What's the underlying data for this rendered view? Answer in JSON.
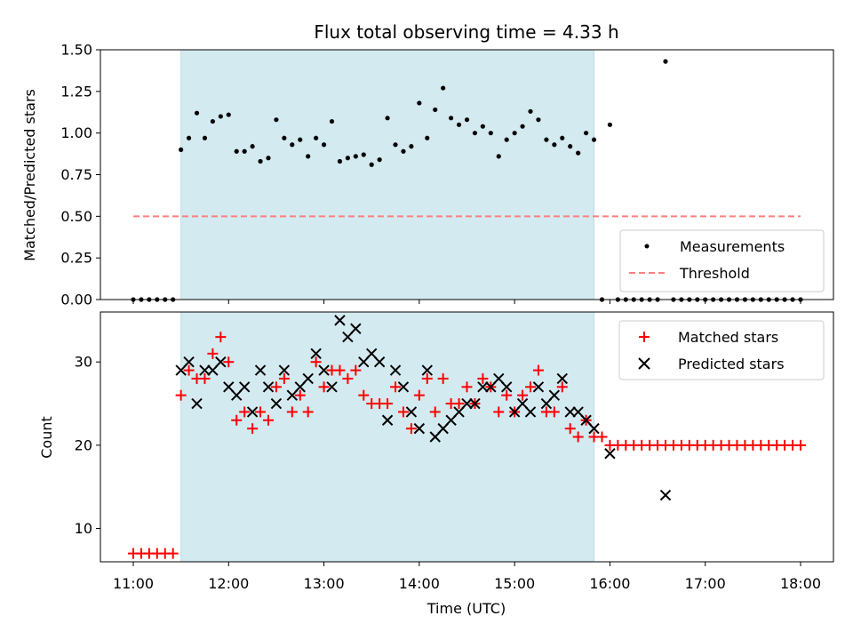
{
  "chart_data": {
    "title": "Flux total observing time = 4.33 h",
    "xlabel": "Time (UTC)",
    "x_ticks": [
      "11:00",
      "12:00",
      "13:00",
      "14:00",
      "15:00",
      "16:00",
      "17:00",
      "18:00"
    ],
    "highlight_span": {
      "start": "11:30",
      "end": "15:50",
      "color": "#d3eaf0"
    },
    "panels": [
      {
        "type": "scatter",
        "ylabel": "Matched/Predicted stars",
        "ylim": [
          0,
          1.5
        ],
        "y_ticks": [
          "0.00",
          "0.25",
          "0.50",
          "0.75",
          "1.00",
          "1.25",
          "1.50"
        ],
        "legend_position": "lower-right",
        "threshold": {
          "name": "Threshold",
          "value": 0.5,
          "x_start": "11:00",
          "x_end": "18:00",
          "color": "#ff7f7f"
        },
        "series": [
          {
            "name": "Measurements",
            "marker": "dot",
            "color": "#000000",
            "x": [
              "11:00",
              "11:05",
              "11:10",
              "11:15",
              "11:20",
              "11:25",
              "11:30",
              "11:35",
              "11:40",
              "11:45",
              "11:50",
              "11:55",
              "12:00",
              "12:05",
              "12:10",
              "12:15",
              "12:20",
              "12:25",
              "12:30",
              "12:35",
              "12:40",
              "12:45",
              "12:50",
              "12:55",
              "13:00",
              "13:05",
              "13:10",
              "13:15",
              "13:20",
              "13:25",
              "13:30",
              "13:35",
              "13:40",
              "13:45",
              "13:50",
              "13:55",
              "14:00",
              "14:05",
              "14:10",
              "14:15",
              "14:20",
              "14:25",
              "14:30",
              "14:35",
              "14:40",
              "14:45",
              "14:50",
              "14:55",
              "15:00",
              "15:05",
              "15:10",
              "15:15",
              "15:20",
              "15:25",
              "15:30",
              "15:35",
              "15:40",
              "15:45",
              "15:50",
              "15:55",
              "16:00",
              "16:05",
              "16:10",
              "16:15",
              "16:20",
              "16:25",
              "16:30",
              "16:35",
              "16:40",
              "16:45",
              "16:50",
              "16:55",
              "17:00",
              "17:05",
              "17:10",
              "17:15",
              "17:20",
              "17:25",
              "17:30",
              "17:35",
              "17:40",
              "17:45",
              "17:50",
              "17:55",
              "18:00"
            ],
            "y": [
              0,
              0,
              0,
              0,
              0,
              0,
              0.9,
              0.97,
              1.12,
              0.97,
              1.07,
              1.1,
              1.11,
              0.89,
              0.89,
              0.92,
              0.83,
              0.85,
              1.08,
              0.97,
              0.93,
              0.96,
              0.86,
              0.97,
              0.93,
              1.07,
              0.83,
              0.85,
              0.86,
              0.87,
              0.81,
              0.84,
              1.09,
              0.93,
              0.89,
              0.92,
              1.18,
              0.97,
              1.14,
              1.27,
              1.09,
              1.05,
              1.08,
              1.0,
              1.04,
              1.0,
              0.86,
              0.96,
              1.0,
              1.04,
              1.13,
              1.08,
              0.96,
              0.93,
              0.97,
              0.92,
              0.88,
              1.0,
              0.96,
              0,
              1.05,
              0,
              0,
              0,
              0,
              0,
              0,
              1.43,
              0,
              0,
              0,
              0,
              0,
              0,
              0,
              0,
              0,
              0,
              0,
              0,
              0,
              0,
              0,
              0,
              0
            ]
          }
        ]
      },
      {
        "type": "scatter",
        "ylabel": "Count",
        "ylim": [
          6,
          36
        ],
        "y_ticks": [
          "10",
          "20",
          "30"
        ],
        "legend_position": "upper-right",
        "series": [
          {
            "name": "Matched stars",
            "marker": "plus",
            "color": "#ff0000",
            "x": [
              "11:00",
              "11:05",
              "11:10",
              "11:15",
              "11:20",
              "11:25",
              "11:30",
              "11:35",
              "11:40",
              "11:45",
              "11:50",
              "11:55",
              "12:00",
              "12:05",
              "12:10",
              "12:15",
              "12:20",
              "12:25",
              "12:30",
              "12:35",
              "12:40",
              "12:45",
              "12:50",
              "12:55",
              "13:00",
              "13:05",
              "13:10",
              "13:15",
              "13:20",
              "13:25",
              "13:30",
              "13:35",
              "13:40",
              "13:45",
              "13:50",
              "13:55",
              "14:00",
              "14:05",
              "14:10",
              "14:15",
              "14:20",
              "14:25",
              "14:30",
              "14:35",
              "14:40",
              "14:45",
              "14:50",
              "14:55",
              "15:00",
              "15:05",
              "15:10",
              "15:15",
              "15:20",
              "15:25",
              "15:30",
              "15:35",
              "15:40",
              "15:45",
              "15:50",
              "15:55",
              "16:00",
              "16:05",
              "16:10",
              "16:15",
              "16:20",
              "16:25",
              "16:30",
              "16:35",
              "16:40",
              "16:45",
              "16:50",
              "16:55",
              "17:00",
              "17:05",
              "17:10",
              "17:15",
              "17:20",
              "17:25",
              "17:30",
              "17:35",
              "17:40",
              "17:45",
              "17:50",
              "17:55",
              "18:00"
            ],
            "y": [
              7,
              7,
              7,
              7,
              7,
              7,
              26,
              29,
              28,
              28,
              31,
              33,
              30,
              23,
              24,
              22,
              24,
              23,
              27,
              28,
              24,
              26,
              24,
              30,
              27,
              29,
              29,
              28,
              29,
              26,
              25,
              25,
              25,
              27,
              24,
              22,
              26,
              28,
              24,
              28,
              25,
              25,
              27,
              25,
              28,
              27,
              24,
              26,
              24,
              26,
              27,
              29,
              24,
              24,
              27,
              22,
              21,
              23,
              21,
              21,
              20,
              20,
              20,
              20,
              20,
              20,
              20,
              20,
              20,
              20,
              20,
              20,
              20,
              20,
              20,
              20,
              20,
              20,
              20,
              20,
              20,
              20,
              20,
              20,
              20
            ]
          },
          {
            "name": "Predicted stars",
            "marker": "x",
            "color": "#000000",
            "x": [
              "11:30",
              "11:35",
              "11:40",
              "11:45",
              "11:50",
              "11:55",
              "12:00",
              "12:05",
              "12:10",
              "12:15",
              "12:20",
              "12:25",
              "12:30",
              "12:35",
              "12:40",
              "12:45",
              "12:50",
              "12:55",
              "13:00",
              "13:05",
              "13:10",
              "13:15",
              "13:20",
              "13:25",
              "13:30",
              "13:35",
              "13:40",
              "13:45",
              "13:50",
              "13:55",
              "14:00",
              "14:05",
              "14:10",
              "14:15",
              "14:20",
              "14:25",
              "14:30",
              "14:35",
              "14:40",
              "14:45",
              "14:50",
              "14:55",
              "15:00",
              "15:05",
              "15:10",
              "15:15",
              "15:20",
              "15:25",
              "15:30",
              "15:35",
              "15:40",
              "15:45",
              "15:50",
              "16:00",
              "16:35"
            ],
            "y": [
              29,
              30,
              25,
              29,
              29,
              30,
              27,
              26,
              27,
              24,
              29,
              27,
              25,
              29,
              26,
              27,
              28,
              31,
              29,
              27,
              35,
              33,
              34,
              30,
              31,
              30,
              23,
              29,
              27,
              24,
              22,
              29,
              21,
              22,
              23,
              24,
              25,
              25,
              27,
              27,
              28,
              27,
              24,
              25,
              24,
              27,
              25,
              26,
              28,
              24,
              24,
              23,
              22,
              19,
              14
            ]
          }
        ]
      }
    ]
  }
}
